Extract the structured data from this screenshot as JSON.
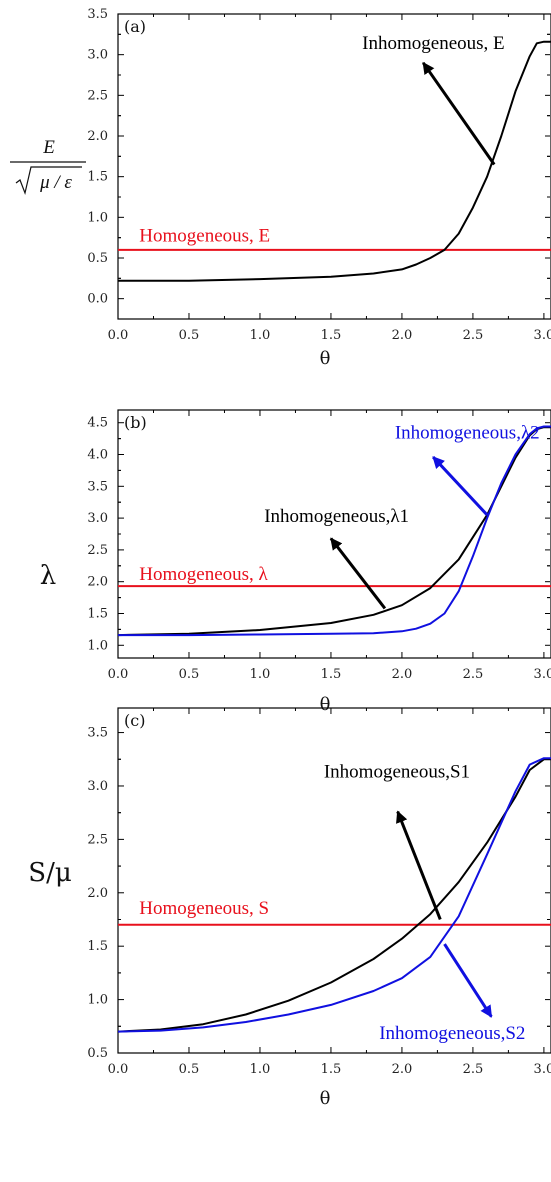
{
  "colors": {
    "black": "#000000",
    "red": "#e8101c",
    "blue": "#1010e0"
  },
  "chart_data": [
    {
      "type": "line",
      "panel_label": "(a)",
      "xlabel": "θ",
      "ylabel_num": "E",
      "ylabel_den": "μ / ε",
      "xlim": [
        0,
        3.05
      ],
      "ylim": [
        -0.25,
        3.5
      ],
      "xticks": [
        "0.0",
        "0.5",
        "1.0",
        "1.5",
        "2.0",
        "2.5",
        "3.0"
      ],
      "yticks": [
        "0.0",
        "0.5",
        "1.0",
        "1.5",
        "2.0",
        "2.5",
        "3.0",
        "3.5"
      ],
      "series": [
        {
          "name": "Homogeneous, E",
          "color": "red",
          "x": [
            0,
            3.05
          ],
          "y": [
            0.6,
            0.6
          ]
        },
        {
          "name": "Inhomogeneous, E",
          "color": "black",
          "x": [
            0,
            0.5,
            1.0,
            1.5,
            1.8,
            2.0,
            2.1,
            2.2,
            2.3,
            2.4,
            2.5,
            2.6,
            2.7,
            2.8,
            2.9,
            2.95,
            3.0,
            3.05
          ],
          "y": [
            0.22,
            0.22,
            0.24,
            0.27,
            0.31,
            0.36,
            0.42,
            0.5,
            0.6,
            0.8,
            1.12,
            1.5,
            2.0,
            2.55,
            2.98,
            3.14,
            3.16,
            3.16
          ]
        }
      ],
      "annotations": [
        {
          "text": "Inhomogeneous, E",
          "color": "black",
          "label_x": 1.72,
          "label_y": 3.07,
          "from": [
            2.65,
            1.65
          ],
          "to": [
            2.15,
            2.9
          ]
        },
        {
          "text": "Homogeneous, E",
          "color": "red",
          "label_x": 0.15,
          "label_y": 0.7
        }
      ]
    },
    {
      "type": "line",
      "panel_label": "(b)",
      "xlabel": "θ",
      "ylabel": "λ",
      "xlim": [
        0,
        3.05
      ],
      "ylim": [
        0.8,
        4.7
      ],
      "xticks": [
        "0.0",
        "0.5",
        "1.0",
        "1.5",
        "2.0",
        "2.5",
        "3.0"
      ],
      "yticks": [
        "1.0",
        "1.5",
        "2.0",
        "2.5",
        "3.0",
        "3.5",
        "4.0",
        "4.5"
      ],
      "series": [
        {
          "name": "Homogeneous, λ",
          "color": "red",
          "x": [
            0,
            3.05
          ],
          "y": [
            1.93,
            1.93
          ]
        },
        {
          "name": "Inhomogeneous,λ1",
          "color": "black",
          "x": [
            0,
            0.5,
            1.0,
            1.5,
            1.8,
            2.0,
            2.2,
            2.4,
            2.6,
            2.7,
            2.8,
            2.9,
            2.95,
            3.0,
            3.05
          ],
          "y": [
            1.16,
            1.18,
            1.24,
            1.35,
            1.48,
            1.63,
            1.9,
            2.35,
            3.05,
            3.5,
            3.95,
            4.3,
            4.4,
            4.43,
            4.43
          ]
        },
        {
          "name": "Inhomogeneous,λ2",
          "color": "blue",
          "x": [
            0,
            0.5,
            1.0,
            1.5,
            1.8,
            2.0,
            2.1,
            2.2,
            2.3,
            2.4,
            2.5,
            2.6,
            2.7,
            2.8,
            2.9,
            2.95,
            3.0,
            3.05
          ],
          "y": [
            1.16,
            1.16,
            1.17,
            1.18,
            1.19,
            1.22,
            1.26,
            1.34,
            1.5,
            1.85,
            2.4,
            3.0,
            3.55,
            4.0,
            4.32,
            4.41,
            4.44,
            4.44
          ]
        }
      ],
      "annotations": [
        {
          "text": "Inhomogeneous,λ2",
          "color": "blue",
          "label_x": 1.95,
          "label_y": 4.25,
          "from": [
            2.6,
            3.05
          ],
          "to": [
            2.22,
            3.96
          ]
        },
        {
          "text": "Inhomogeneous,λ1",
          "color": "black",
          "label_x": 1.03,
          "label_y": 2.94,
          "from": [
            1.88,
            1.58
          ],
          "to": [
            1.5,
            2.68
          ]
        },
        {
          "text": "Homogeneous, λ",
          "color": "red",
          "label_x": 0.15,
          "label_y": 2.03
        }
      ]
    },
    {
      "type": "line",
      "panel_label": "(c)",
      "xlabel": "θ",
      "ylabel": "S/μ",
      "xlim": [
        0,
        3.05
      ],
      "ylim": [
        0.5,
        3.73
      ],
      "xticks": [
        "0.0",
        "0.5",
        "1.0",
        "1.5",
        "2.0",
        "2.5",
        "3.0"
      ],
      "yticks": [
        "0.5",
        "1.0",
        "1.5",
        "2.0",
        "2.5",
        "3.0",
        "3.5"
      ],
      "series": [
        {
          "name": "Homogeneous, S",
          "color": "red",
          "x": [
            0,
            3.05
          ],
          "y": [
            1.7,
            1.7
          ]
        },
        {
          "name": "Inhomogeneous,S1",
          "color": "black",
          "x": [
            0,
            0.3,
            0.6,
            0.9,
            1.2,
            1.5,
            1.8,
            2.0,
            2.2,
            2.4,
            2.6,
            2.8,
            2.9,
            3.0,
            3.05
          ],
          "y": [
            0.7,
            0.72,
            0.77,
            0.86,
            0.99,
            1.16,
            1.38,
            1.57,
            1.8,
            2.1,
            2.47,
            2.9,
            3.15,
            3.25,
            3.25
          ]
        },
        {
          "name": "Inhomogeneous,S2",
          "color": "blue",
          "x": [
            0,
            0.3,
            0.6,
            0.9,
            1.2,
            1.5,
            1.8,
            2.0,
            2.2,
            2.4,
            2.6,
            2.8,
            2.9,
            3.0,
            3.05
          ],
          "y": [
            0.7,
            0.71,
            0.74,
            0.79,
            0.86,
            0.95,
            1.08,
            1.2,
            1.4,
            1.78,
            2.36,
            2.95,
            3.2,
            3.26,
            3.26
          ]
        }
      ],
      "annotations": [
        {
          "text": "Inhomogeneous,S1",
          "color": "black",
          "label_x": 1.45,
          "label_y": 3.08,
          "from": [
            2.27,
            1.75
          ],
          "to": [
            1.97,
            2.76
          ]
        },
        {
          "text": "Inhomogeneous,S2",
          "color": "blue",
          "label_x": 1.84,
          "label_y": 0.63,
          "from": [
            2.3,
            1.52
          ],
          "to": [
            2.63,
            0.84
          ]
        },
        {
          "text": "Homogeneous, S",
          "color": "red",
          "label_x": 0.15,
          "label_y": 1.8
        }
      ]
    }
  ]
}
